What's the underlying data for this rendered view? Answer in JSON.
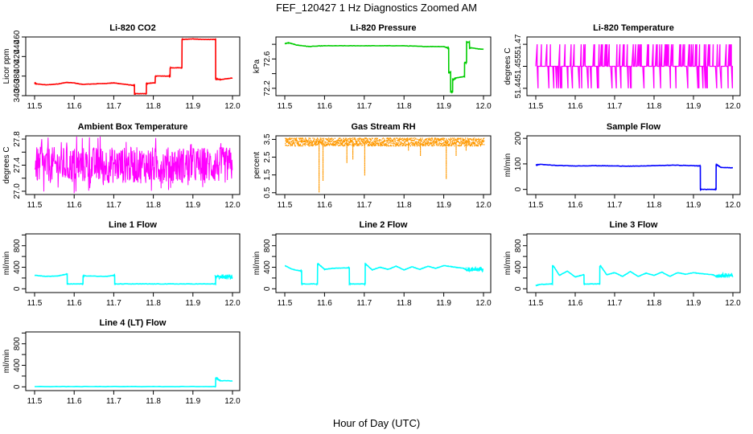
{
  "figure": {
    "title": "FEF_120427  1 Hz Diagnostics Zoomed AM",
    "xlabel": "Hour of Day (UTC)"
  },
  "chart_data": [
    {
      "type": "line",
      "title": "Li-820 CO2",
      "ylabel": "Licor ppm",
      "color": "#ff0000",
      "xlim": [
        11.5,
        12.0
      ],
      "ylim": [
        340,
        460
      ],
      "xticks": [
        "11.5",
        "11.6",
        "11.7",
        "11.8",
        "11.9",
        "12.0"
      ],
      "yticks": [
        340,
        380,
        420,
        460
      ],
      "ytick_labels": [
        "340",
        "380",
        "420",
        "460"
      ],
      "y_step_labels": [
        "360",
        "400",
        "440"
      ],
      "x": [
        11.5,
        11.505,
        11.53,
        11.56,
        11.58,
        11.6,
        11.62,
        11.65,
        11.68,
        11.7,
        11.72,
        11.75,
        11.755,
        11.78,
        11.785,
        11.8,
        11.81,
        11.84,
        11.845,
        11.87,
        11.875,
        11.9,
        11.92,
        11.955,
        11.96,
        11.97,
        12.0
      ],
      "series": [
        {
          "values": [
            366,
            364,
            362,
            364,
            367,
            366,
            363,
            364,
            365,
            366,
            364,
            361,
            344,
            344,
            365,
            366,
            380,
            380,
            397,
            397,
            455,
            456,
            455,
            455,
            374,
            373,
            376
          ]
        }
      ]
    },
    {
      "type": "line",
      "title": "Li-820 Pressure",
      "ylabel": "kPa",
      "color": "#00cc00",
      "xlim": [
        11.5,
        12.0
      ],
      "ylim": [
        72.1,
        72.9
      ],
      "xticks": [
        "11.5",
        "11.6",
        "11.7",
        "11.8",
        "11.9",
        "12.0"
      ],
      "yticks": [
        72.2,
        72.4,
        72.6,
        72.8
      ],
      "ytick_labels": [
        "72.2",
        "",
        "72.6",
        ""
      ],
      "x": [
        11.5,
        11.51,
        11.53,
        11.56,
        11.6,
        11.65,
        11.7,
        11.75,
        11.8,
        11.85,
        11.9,
        11.91,
        11.915,
        11.92,
        11.925,
        11.93,
        11.95,
        11.955,
        11.96,
        11.97,
        12.0
      ],
      "series": [
        {
          "values": [
            72.81,
            72.82,
            72.79,
            72.77,
            72.78,
            72.78,
            72.78,
            72.78,
            72.78,
            72.77,
            72.77,
            72.75,
            72.42,
            72.15,
            72.32,
            72.34,
            72.36,
            72.55,
            72.83,
            72.75,
            72.73
          ]
        }
      ]
    },
    {
      "type": "line",
      "title": "Li-820 Temperature",
      "ylabel": "degrees C",
      "color": "#ff00ff",
      "xlim": [
        11.5,
        12.0
      ],
      "ylim": [
        51.435,
        51.475
      ],
      "xticks": [
        "11.5",
        "11.6",
        "11.7",
        "11.8",
        "11.9",
        "12.0"
      ],
      "yticks": [
        51.44,
        51.455,
        51.47
      ],
      "ytick_labels": [
        "51.44",
        "51.455",
        "51.47"
      ],
      "levels": [
        51.44,
        51.455,
        51.47
      ],
      "base_level": 51.455,
      "series": [
        {
          "name": "quantized 3-level noise"
        }
      ]
    },
    {
      "type": "line",
      "title": "Ambient Box Temperature",
      "ylabel": "degrees C",
      "color": "#ff00ff",
      "xlim": [
        11.5,
        12.0
      ],
      "ylim": [
        26.95,
        27.85
      ],
      "xticks": [
        "11.5",
        "11.6",
        "11.7",
        "11.8",
        "11.9",
        "12.0"
      ],
      "yticks": [
        27.0,
        27.2,
        27.4,
        27.6,
        27.8
      ],
      "ytick_labels": [
        "27.0",
        "",
        "27.4",
        "",
        "27.8"
      ],
      "mean": 27.4,
      "band": [
        27.2,
        27.6
      ],
      "series": [
        {
          "name": "noisy band"
        }
      ]
    },
    {
      "type": "scatter",
      "title": "Gas Stream RH",
      "ylabel": "percent",
      "color": "#ff9900",
      "xlim": [
        11.5,
        12.0
      ],
      "ylim": [
        0.4,
        3.7
      ],
      "xticks": [
        "11.5",
        "11.6",
        "11.7",
        "11.8",
        "11.9",
        "12.0"
      ],
      "yticks": [
        0.5,
        1.5,
        2.5,
        3.5
      ],
      "ytick_labels": [
        "0.5",
        "1.5",
        "2.5",
        "3.5"
      ],
      "mean": 3.35,
      "band": [
        3.1,
        3.55
      ],
      "spikes": [
        [
          11.585,
          0.55
        ],
        [
          11.595,
          1.2
        ],
        [
          11.655,
          2.2
        ],
        [
          11.67,
          2.4
        ],
        [
          11.7,
          1.5
        ],
        [
          11.81,
          2.9
        ],
        [
          11.84,
          2.6
        ],
        [
          11.905,
          1.3
        ],
        [
          11.93,
          2.6
        ],
        [
          11.955,
          2.9
        ]
      ],
      "series": [
        {
          "name": "points with dropouts"
        }
      ]
    },
    {
      "type": "line",
      "title": "Sample Flow",
      "ylabel": "ml/min",
      "color": "#0000ff",
      "xlim": [
        11.5,
        12.0
      ],
      "ylim": [
        -20,
        210
      ],
      "xticks": [
        "11.5",
        "11.6",
        "11.7",
        "11.8",
        "11.9",
        "12.0"
      ],
      "yticks": [
        0,
        100,
        200
      ],
      "ytick_labels": [
        "0",
        "100",
        "200"
      ],
      "x": [
        11.5,
        11.51,
        11.55,
        11.6,
        11.65,
        11.7,
        11.75,
        11.8,
        11.85,
        11.9,
        11.915,
        11.92,
        11.955,
        11.96,
        11.97,
        12.0
      ],
      "series": [
        {
          "values": [
            95,
            98,
            94,
            92,
            93,
            92,
            91,
            93,
            95,
            93,
            92,
            0,
            0,
            96,
            86,
            85
          ]
        }
      ]
    },
    {
      "type": "line",
      "title": "Line 1 Flow",
      "ylabel": "ml/min",
      "color": "#00ffff",
      "xlim": [
        11.5,
        12.0
      ],
      "ylim": [
        -70,
        1020
      ],
      "xticks": [
        "11.5",
        "11.6",
        "11.7",
        "11.8",
        "11.9",
        "12.0"
      ],
      "yticks": [
        0,
        200,
        400,
        600,
        800,
        1000
      ],
      "ytick_labels": [
        "0",
        "",
        "400",
        "",
        "800",
        ""
      ],
      "x": [
        11.5,
        11.53,
        11.56,
        11.58,
        11.585,
        11.62,
        11.625,
        11.68,
        11.7,
        11.705,
        11.75,
        11.8,
        11.85,
        11.9,
        11.955,
        11.96,
        12.0
      ],
      "series": [
        {
          "values": [
            250,
            230,
            240,
            270,
            90,
            90,
            240,
            230,
            250,
            90,
            90,
            90,
            90,
            90,
            90,
            230,
            220
          ]
        }
      ]
    },
    {
      "type": "line",
      "title": "Line 2 Flow",
      "ylabel": "ml/min",
      "color": "#00ffff",
      "xlim": [
        11.5,
        12.0
      ],
      "ylim": [
        -70,
        1020
      ],
      "xticks": [
        "11.5",
        "11.6",
        "11.7",
        "11.8",
        "11.9",
        "12.0"
      ],
      "yticks": [
        0,
        200,
        400,
        600,
        800,
        1000
      ],
      "ytick_labels": [
        "0",
        "",
        "400",
        "",
        "800",
        ""
      ],
      "x": [
        11.5,
        11.52,
        11.54,
        11.545,
        11.58,
        11.585,
        11.6,
        11.62,
        11.66,
        11.665,
        11.7,
        11.705,
        11.72,
        11.74,
        11.76,
        11.78,
        11.8,
        11.82,
        11.84,
        11.86,
        11.88,
        11.9,
        11.92,
        11.95,
        11.96,
        12.0
      ],
      "series": [
        {
          "values": [
            430,
            360,
            330,
            90,
            90,
            460,
            360,
            380,
            390,
            90,
            90,
            450,
            350,
            400,
            360,
            420,
            350,
            410,
            360,
            420,
            380,
            430,
            410,
            380,
            340,
            360
          ]
        }
      ]
    },
    {
      "type": "line",
      "title": "Line 3 Flow",
      "ylabel": "ml/min",
      "color": "#00ffff",
      "xlim": [
        11.5,
        12.0
      ],
      "ylim": [
        -70,
        1020
      ],
      "xticks": [
        "11.5",
        "11.6",
        "11.7",
        "11.8",
        "11.9",
        "12.0"
      ],
      "yticks": [
        0,
        200,
        400,
        600,
        800,
        1000
      ],
      "ytick_labels": [
        "0",
        "",
        "400",
        "",
        "800",
        ""
      ],
      "x": [
        11.5,
        11.51,
        11.54,
        11.545,
        11.56,
        11.58,
        11.6,
        11.62,
        11.625,
        11.66,
        11.665,
        11.68,
        11.7,
        11.72,
        11.74,
        11.76,
        11.78,
        11.8,
        11.82,
        11.84,
        11.86,
        11.88,
        11.9,
        11.92,
        11.95,
        11.96,
        12.0
      ],
      "series": [
        {
          "values": [
            60,
            80,
            90,
            420,
            250,
            330,
            220,
            260,
            90,
            90,
            420,
            260,
            300,
            230,
            320,
            230,
            290,
            250,
            310,
            230,
            300,
            270,
            300,
            280,
            260,
            220,
            250
          ]
        }
      ]
    },
    {
      "type": "line",
      "title": "Line 4 (LT) Flow",
      "ylabel": "ml/min",
      "color": "#00ffff",
      "xlim": [
        11.5,
        12.0
      ],
      "ylim": [
        -70,
        1020
      ],
      "xticks": [
        "11.5",
        "11.6",
        "11.7",
        "11.8",
        "11.9",
        "12.0"
      ],
      "yticks": [
        0,
        200,
        400,
        600,
        800,
        1000
      ],
      "ytick_labels": [
        "0",
        "",
        "400",
        "",
        "800",
        ""
      ],
      "x": [
        11.5,
        11.6,
        11.7,
        11.8,
        11.9,
        11.955,
        11.96,
        11.965,
        11.97,
        12.0
      ],
      "series": [
        {
          "values": [
            5,
            5,
            5,
            5,
            5,
            5,
            160,
            130,
            115,
            110
          ]
        }
      ]
    }
  ]
}
